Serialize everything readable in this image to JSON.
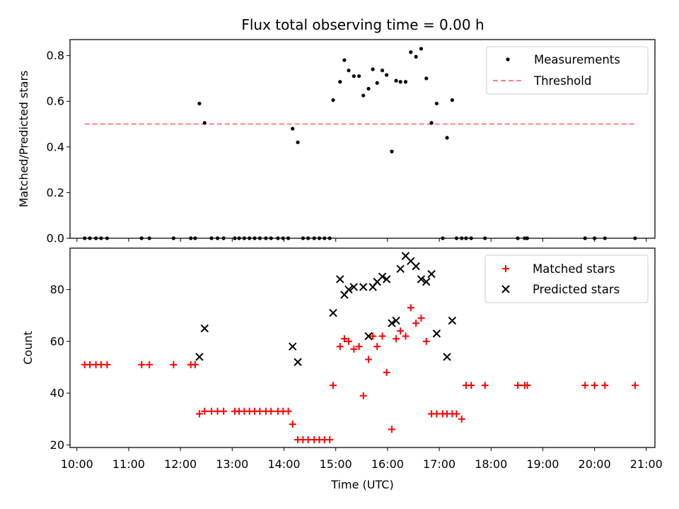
{
  "title": "Flux total observing time = 0.00 h",
  "chart_data": [
    {
      "type": "scatter",
      "ylabel": "Matched/Predicted stars",
      "ylim": [
        0,
        0.87
      ],
      "yticks": [
        0.0,
        0.2,
        0.4,
        0.6,
        0.8
      ],
      "ytick_labels": [
        "0.0",
        "0.2",
        "0.4",
        "0.6",
        "0.8"
      ],
      "legend": {
        "position": "top-right",
        "entries": [
          "Measurements",
          "Threshold"
        ]
      },
      "series": [
        {
          "name": "Measurements",
          "color": "#000000",
          "marker": "dot",
          "x": [
            "10:09",
            "10:15",
            "10:22",
            "10:28",
            "10:35",
            "11:15",
            "11:24",
            "11:52",
            "12:12",
            "12:17",
            "12:22",
            "12:28",
            "12:36",
            "12:43",
            "12:50",
            "13:03",
            "13:08",
            "13:14",
            "13:20",
            "13:26",
            "13:32",
            "13:39",
            "13:45",
            "13:53",
            "13:59",
            "14:05",
            "14:10",
            "14:16",
            "14:22",
            "14:28",
            "14:35",
            "14:41",
            "14:47",
            "14:53",
            "14:57",
            "15:05",
            "15:10",
            "15:15",
            "15:21",
            "15:27",
            "15:32",
            "15:38",
            "15:43",
            "15:48",
            "15:54",
            "15:59",
            "16:05",
            "16:10",
            "16:15",
            "16:21",
            "16:27",
            "16:33",
            "16:39",
            "16:45",
            "16:51",
            "16:57",
            "17:04",
            "17:09",
            "17:15",
            "17:20",
            "17:26",
            "17:31",
            "17:37",
            "17:53",
            "18:31",
            "18:39",
            "18:42",
            "19:49",
            "20:00",
            "20:12",
            "20:47"
          ],
          "y": [
            0,
            0,
            0,
            0,
            0,
            0,
            0,
            0,
            0,
            0,
            0.59,
            0.505,
            0,
            0,
            0,
            0,
            0,
            0,
            0,
            0,
            0,
            0,
            0,
            0,
            0,
            0,
            0.48,
            0.42,
            0,
            0,
            0,
            0,
            0,
            0,
            0.605,
            0.685,
            0.78,
            0.735,
            0.71,
            0.71,
            0.625,
            0.655,
            0.74,
            0.68,
            0.735,
            0.715,
            0.38,
            0.69,
            0.685,
            0.685,
            0.815,
            0.795,
            0.83,
            0.7,
            0.505,
            0.59,
            0,
            0.44,
            0.605,
            0,
            0,
            0,
            0,
            0,
            0,
            0,
            0,
            0,
            0,
            0,
            0
          ]
        },
        {
          "name": "Threshold",
          "color": "#ff7f7f",
          "style": "dashed",
          "x": [
            "10:09",
            "20:47"
          ],
          "y": [
            0.5,
            0.5
          ]
        }
      ]
    },
    {
      "type": "scatter",
      "xlabel": "Time (UTC)",
      "ylabel": "Count",
      "ylim": [
        19,
        96
      ],
      "yticks": [
        20,
        40,
        60,
        80
      ],
      "ytick_labels": [
        "20",
        "40",
        "60",
        "80"
      ],
      "xlim": [
        "09:52",
        "21:10"
      ],
      "xticks": [
        "10:00",
        "11:00",
        "12:00",
        "13:00",
        "14:00",
        "15:00",
        "16:00",
        "17:00",
        "18:00",
        "19:00",
        "20:00",
        "21:00"
      ],
      "legend": {
        "position": "top-right",
        "entries": [
          "Matched stars",
          "Predicted stars"
        ]
      },
      "series": [
        {
          "name": "Matched stars",
          "color": "#ff0000",
          "marker": "plus",
          "x": [
            "10:09",
            "10:15",
            "10:22",
            "10:28",
            "10:35",
            "11:15",
            "11:24",
            "11:52",
            "12:12",
            "12:17",
            "12:22",
            "12:28",
            "12:36",
            "12:43",
            "12:50",
            "13:03",
            "13:08",
            "13:14",
            "13:20",
            "13:26",
            "13:32",
            "13:39",
            "13:45",
            "13:53",
            "13:59",
            "14:05",
            "14:10",
            "14:16",
            "14:22",
            "14:28",
            "14:35",
            "14:41",
            "14:47",
            "14:53",
            "14:57",
            "15:05",
            "15:10",
            "15:15",
            "15:21",
            "15:27",
            "15:32",
            "15:38",
            "15:43",
            "15:48",
            "15:54",
            "15:59",
            "16:05",
            "16:10",
            "16:15",
            "16:21",
            "16:27",
            "16:33",
            "16:39",
            "16:45",
            "16:51",
            "16:57",
            "17:04",
            "17:09",
            "17:15",
            "17:20",
            "17:26",
            "17:31",
            "17:37",
            "17:53",
            "18:31",
            "18:39",
            "18:42",
            "19:49",
            "20:00",
            "20:12",
            "20:47"
          ],
          "y": [
            51,
            51,
            51,
            51,
            51,
            51,
            51,
            51,
            51,
            51,
            32,
            33,
            33,
            33,
            33,
            33,
            33,
            33,
            33,
            33,
            33,
            33,
            33,
            33,
            33,
            33,
            28,
            22,
            22,
            22,
            22,
            22,
            22,
            22,
            43,
            58,
            61,
            60,
            57,
            58,
            39,
            53,
            62,
            58,
            62,
            48,
            26,
            61,
            64,
            62,
            73,
            67,
            69,
            60,
            32,
            32,
            32,
            32,
            32,
            32,
            30,
            43,
            43,
            43,
            43,
            43,
            43,
            43,
            43,
            43,
            43
          ]
        },
        {
          "name": "Predicted stars",
          "color": "#000000",
          "marker": "x",
          "x": [
            "12:22",
            "12:28",
            "14:10",
            "14:16",
            "14:57",
            "15:05",
            "15:10",
            "15:15",
            "15:21",
            "15:32",
            "15:38",
            "15:43",
            "15:48",
            "15:54",
            "15:59",
            "16:05",
            "16:10",
            "16:15",
            "16:21",
            "16:27",
            "16:33",
            "16:39",
            "16:45",
            "16:51",
            "16:57",
            "17:09",
            "17:15"
          ],
          "y": [
            54,
            65,
            58,
            52,
            71,
            84,
            78,
            80,
            81,
            81,
            62,
            81,
            83,
            85,
            84,
            67,
            68,
            88,
            93,
            91,
            89,
            84,
            83,
            86,
            63,
            54,
            68
          ]
        }
      ]
    }
  ]
}
